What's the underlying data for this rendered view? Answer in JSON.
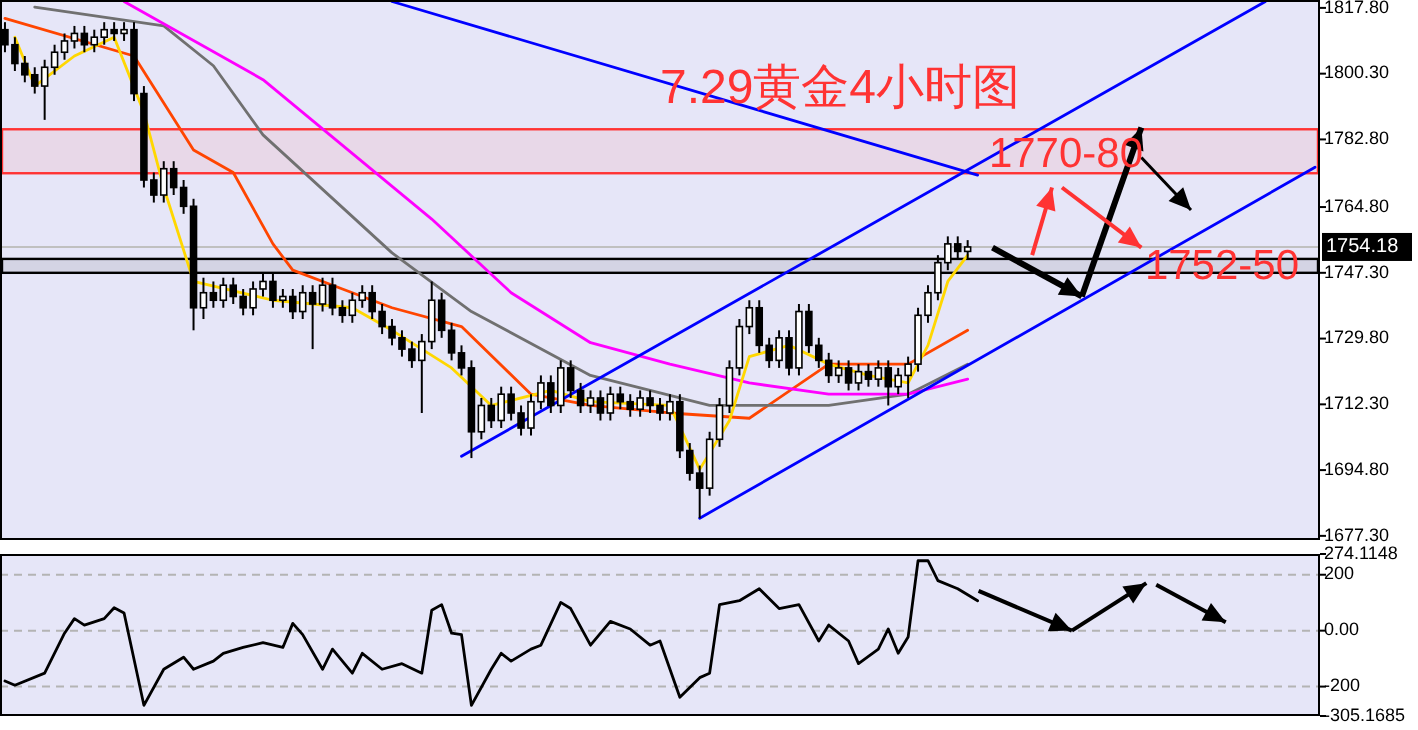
{
  "chart_data": [
    {
      "type": "candlestick",
      "title": "7.29黄金4小时图",
      "categories": [
        null,
        null,
        null,
        null,
        null,
        null,
        null,
        null,
        null,
        null,
        null,
        null,
        null,
        null,
        null,
        null,
        null,
        null,
        null,
        null,
        null,
        null,
        null,
        null,
        null,
        null,
        null,
        null,
        null,
        null,
        null,
        null,
        null,
        null,
        null,
        null,
        null,
        null,
        null,
        null,
        null,
        null,
        null,
        null,
        null,
        null,
        null,
        null,
        null,
        null,
        null,
        null,
        null,
        null,
        null,
        null,
        null,
        null,
        null,
        null,
        null,
        null,
        null,
        null,
        null,
        null,
        null,
        null,
        null,
        null,
        null,
        null,
        null,
        null,
        null,
        null,
        null,
        null,
        null,
        null,
        null,
        null,
        null,
        null,
        null,
        null,
        null,
        null,
        null,
        null,
        null,
        null,
        null,
        null,
        null,
        null,
        null,
        null,
        null,
        null,
        null,
        null,
        null,
        null,
        null,
        null,
        null,
        null,
        null,
        null,
        null,
        null,
        null,
        null,
        null,
        null,
        null,
        null,
        null,
        null,
        null,
        null,
        null,
        null,
        null,
        null,
        null,
        null,
        null,
        null,
        null,
        null,
        null
      ],
      "ohlc": [
        [
          1812,
          1814,
          1806,
          1808
        ],
        [
          1808,
          1810,
          1801,
          1803
        ],
        [
          1803,
          1805,
          1798,
          1800
        ],
        [
          1800,
          1802,
          1795,
          1797
        ],
        [
          1797,
          1804,
          1788,
          1802
        ],
        [
          1802,
          1808,
          1800,
          1806
        ],
        [
          1806,
          1811,
          1804,
          1809
        ],
        [
          1809,
          1813,
          1807,
          1811
        ],
        [
          1811,
          1813,
          1806,
          1808
        ],
        [
          1808,
          1812,
          1806,
          1810
        ],
        [
          1810,
          1814,
          1808,
          1812
        ],
        [
          1812,
          1814,
          1809,
          1811
        ],
        [
          1811,
          1814,
          1809,
          1812
        ],
        [
          1812,
          1814,
          1793,
          1795
        ],
        [
          1795,
          1797,
          1770,
          1772
        ],
        [
          1772,
          1774,
          1766,
          1768
        ],
        [
          1768,
          1777,
          1766,
          1775
        ],
        [
          1775,
          1777,
          1768,
          1770
        ],
        [
          1770,
          1772,
          1763,
          1765
        ],
        [
          1765,
          1767,
          1732,
          1738
        ],
        [
          1738,
          1746,
          1735,
          1742
        ],
        [
          1742,
          1745,
          1738,
          1740
        ],
        [
          1740,
          1746,
          1738,
          1744
        ],
        [
          1744,
          1746,
          1739,
          1741
        ],
        [
          1741,
          1743,
          1736,
          1738
        ],
        [
          1738,
          1745,
          1736,
          1743
        ],
        [
          1743,
          1747,
          1741,
          1745
        ],
        [
          1745,
          1747,
          1738,
          1740
        ],
        [
          1740,
          1743,
          1738,
          1741
        ],
        [
          1741,
          1743,
          1735,
          1737
        ],
        [
          1737,
          1744,
          1735,
          1742
        ],
        [
          1742,
          1744,
          1727,
          1739
        ],
        [
          1739,
          1746,
          1737,
          1744
        ],
        [
          1744,
          1746,
          1736,
          1738
        ],
        [
          1738,
          1740,
          1734,
          1736
        ],
        [
          1736,
          1742,
          1734,
          1740
        ],
        [
          1740,
          1744,
          1738,
          1742
        ],
        [
          1742,
          1744,
          1735,
          1737
        ],
        [
          1737,
          1739,
          1731,
          1733
        ],
        [
          1733,
          1735,
          1728,
          1730
        ],
        [
          1730,
          1732,
          1725,
          1727
        ],
        [
          1727,
          1729,
          1722,
          1724
        ],
        [
          1724,
          1731,
          1710,
          1729
        ],
        [
          1729,
          1745,
          1727,
          1740
        ],
        [
          1740,
          1742,
          1730,
          1732
        ],
        [
          1732,
          1734,
          1724,
          1726
        ],
        [
          1726,
          1728,
          1720,
          1722
        ],
        [
          1722,
          1724,
          1698,
          1705
        ],
        [
          1705,
          1714,
          1703,
          1712
        ],
        [
          1712,
          1714,
          1706,
          1708
        ],
        [
          1708,
          1717,
          1706,
          1715
        ],
        [
          1715,
          1717,
          1708,
          1710
        ],
        [
          1710,
          1712,
          1704,
          1706
        ],
        [
          1706,
          1715,
          1704,
          1713
        ],
        [
          1713,
          1720,
          1711,
          1718
        ],
        [
          1718,
          1720,
          1710,
          1712
        ],
        [
          1712,
          1724,
          1710,
          1722
        ],
        [
          1722,
          1724,
          1714,
          1716
        ],
        [
          1716,
          1718,
          1710,
          1712
        ],
        [
          1712,
          1716,
          1710,
          1714
        ],
        [
          1714,
          1716,
          1708,
          1710
        ],
        [
          1710,
          1717,
          1708,
          1715
        ],
        [
          1715,
          1717,
          1711,
          1713
        ],
        [
          1713,
          1715,
          1709,
          1711
        ],
        [
          1711,
          1716,
          1709,
          1714
        ],
        [
          1714,
          1716,
          1710,
          1712
        ],
        [
          1712,
          1714,
          1708,
          1710
        ],
        [
          1710,
          1715,
          1708,
          1713
        ],
        [
          1713,
          1715,
          1698,
          1700
        ],
        [
          1700,
          1702,
          1692,
          1694
        ],
        [
          1694,
          1696,
          1682,
          1690
        ],
        [
          1690,
          1705,
          1688,
          1703
        ],
        [
          1703,
          1714,
          1701,
          1712
        ],
        [
          1712,
          1724,
          1710,
          1722
        ],
        [
          1722,
          1735,
          1720,
          1733
        ],
        [
          1733,
          1740,
          1731,
          1738
        ],
        [
          1738,
          1740,
          1726,
          1728
        ],
        [
          1728,
          1730,
          1722,
          1724
        ],
        [
          1724,
          1732,
          1722,
          1730
        ],
        [
          1730,
          1732,
          1720,
          1722
        ],
        [
          1722,
          1739,
          1720,
          1737
        ],
        [
          1737,
          1739,
          1726,
          1728
        ],
        [
          1728,
          1730,
          1722,
          1724
        ],
        [
          1724,
          1726,
          1718,
          1720
        ],
        [
          1720,
          1724,
          1718,
          1722
        ],
        [
          1722,
          1724,
          1716,
          1718
        ],
        [
          1718,
          1723,
          1716,
          1721
        ],
        [
          1721,
          1723,
          1717,
          1719
        ],
        [
          1719,
          1724,
          1717,
          1722
        ],
        [
          1722,
          1724,
          1712,
          1717
        ],
        [
          1717,
          1722,
          1715,
          1720
        ],
        [
          1720,
          1725,
          1714,
          1723
        ],
        [
          1723,
          1738,
          1721,
          1736
        ],
        [
          1736,
          1744,
          1734,
          1742
        ],
        [
          1742,
          1752,
          1740,
          1750
        ],
        [
          1750,
          1757,
          1748,
          1755
        ],
        [
          1755,
          1757,
          1751,
          1753
        ],
        [
          1753,
          1756,
          1751,
          1754.18
        ],
        null,
        null,
        null,
        null,
        null,
        null,
        null,
        null,
        null,
        null,
        null,
        null,
        null,
        null,
        null,
        null,
        null,
        null,
        null,
        null,
        null,
        null,
        null,
        null,
        null,
        null,
        null,
        null,
        null,
        null,
        null,
        null,
        null,
        null,
        null
      ],
      "series": [
        {
          "type": "line",
          "color": "#ff4500",
          "values": [
            1815,
            null,
            null,
            null,
            null,
            null,
            null,
            null,
            null,
            null,
            null,
            null,
            null,
            1805,
            null,
            null,
            null,
            null,
            null,
            1780,
            null,
            null,
            null,
            1774,
            null,
            null,
            null,
            1755,
            null,
            1748,
            null,
            null,
            null,
            null,
            1743,
            null,
            null,
            null,
            null,
            1738,
            null,
            null,
            null,
            null,
            null,
            null,
            1733,
            null,
            null,
            null,
            null,
            null,
            null,
            1715,
            null,
            null,
            null,
            null,
            null,
            1712,
            null,
            null,
            null,
            null,
            null,
            null,
            null,
            1710,
            null,
            null,
            null,
            null,
            null,
            null,
            null,
            1708.6,
            null,
            null,
            null,
            null,
            null,
            null,
            null,
            1723,
            null,
            null,
            null,
            null,
            null,
            null,
            null,
            1723,
            null,
            null,
            null,
            null,
            null,
            1732,
            null,
            null,
            null,
            null,
            null,
            null,
            null,
            null,
            null,
            null,
            null,
            null,
            null,
            null,
            null,
            null,
            null,
            null,
            null,
            null,
            null,
            null,
            null,
            null,
            null,
            null,
            null,
            null,
            null,
            null,
            null,
            null,
            null,
            null,
            null
          ]
        },
        {
          "type": "line",
          "color": "#707070",
          "values": [
            null,
            null,
            null,
            1818,
            null,
            null,
            null,
            null,
            null,
            null,
            null,
            null,
            null,
            null,
            null,
            null,
            1813,
            null,
            null,
            null,
            null,
            1802.4,
            null,
            null,
            null,
            null,
            1784,
            null,
            null,
            null,
            null,
            null,
            null,
            null,
            null,
            null,
            null,
            null,
            null,
            1752.6,
            null,
            null,
            null,
            null,
            null,
            null,
            null,
            1737,
            null,
            null,
            null,
            null,
            null,
            null,
            null,
            null,
            null,
            null,
            null,
            1720,
            null,
            null,
            null,
            null,
            null,
            null,
            null,
            null,
            null,
            null,
            null,
            1712,
            null,
            null,
            null,
            null,
            null,
            null,
            null,
            null,
            null,
            null,
            null,
            1712,
            null,
            null,
            null,
            null,
            null,
            null,
            null,
            1715,
            null,
            null,
            null,
            null,
            null,
            1723,
            null,
            null,
            null,
            null,
            null,
            null,
            null,
            null,
            null,
            null,
            null,
            null,
            null,
            null,
            null,
            null,
            null,
            null,
            null,
            null,
            null,
            null,
            null,
            null,
            null,
            null,
            null,
            null,
            null,
            null,
            null,
            null,
            null,
            null,
            null
          ]
        },
        {
          "type": "line",
          "color": "#ff00ff",
          "values": [
            null,
            null,
            null,
            null,
            null,
            null,
            null,
            null,
            null,
            null,
            null,
            null,
            1819.5,
            null,
            null,
            null,
            null,
            null,
            null,
            null,
            null,
            null,
            null,
            null,
            null,
            null,
            1798.7,
            null,
            null,
            null,
            null,
            null,
            null,
            null,
            null,
            null,
            null,
            null,
            null,
            null,
            null,
            null,
            null,
            1761.6,
            null,
            null,
            null,
            null,
            null,
            null,
            null,
            1742,
            null,
            null,
            null,
            null,
            null,
            null,
            null,
            1728.7,
            null,
            null,
            null,
            null,
            null,
            null,
            null,
            1723,
            null,
            null,
            null,
            null,
            null,
            null,
            null,
            1718,
            null,
            null,
            null,
            null,
            null,
            null,
            null,
            1715,
            null,
            null,
            null,
            null,
            null,
            null,
            null,
            1715,
            null,
            null,
            null,
            null,
            null,
            1719,
            null,
            null,
            null,
            null,
            null,
            null,
            null,
            null,
            null,
            null,
            null,
            null,
            null,
            null,
            null,
            null,
            null,
            null,
            null,
            null,
            null,
            null,
            null,
            null,
            null,
            null,
            null,
            null,
            null,
            null,
            null,
            null,
            null,
            null,
            null
          ]
        },
        {
          "type": "line",
          "color": "#ffd700",
          "values": [
            null,
            1810,
            null,
            1797,
            null,
            null,
            null,
            1805,
            null,
            null,
            null,
            1810,
            null,
            null,
            1790,
            null,
            1770,
            null,
            null,
            1745,
            null,
            null,
            null,
            null,
            null,
            null,
            null,
            1740,
            null,
            null,
            null,
            null,
            null,
            null,
            null,
            1738,
            null,
            null,
            null,
            1732,
            null,
            null,
            null,
            null,
            null,
            1722,
            null,
            null,
            null,
            1712,
            null,
            null,
            null,
            null,
            null,
            1716,
            null,
            null,
            null,
            1713,
            null,
            null,
            null,
            null,
            null,
            null,
            null,
            1712,
            null,
            null,
            1695,
            null,
            null,
            1708,
            null,
            1725,
            null,
            null,
            null,
            1728,
            null,
            null,
            null,
            1723,
            null,
            null,
            null,
            1720,
            null,
            null,
            null,
            1718,
            null,
            1728,
            null,
            1745,
            null,
            1752,
            null,
            null,
            null,
            null,
            null,
            null,
            null,
            null,
            null,
            null,
            null,
            null,
            null,
            null,
            null,
            null,
            null,
            null,
            null,
            null,
            null,
            null,
            null,
            null,
            null,
            null,
            null,
            null,
            null,
            null,
            null,
            null,
            null,
            null,
            null
          ]
        },
        {
          "type": "line",
          "color": "#0000ff",
          "values": [
            null,
            null,
            null,
            null,
            null,
            null,
            null,
            null,
            null,
            null,
            null,
            null,
            null,
            null,
            null,
            null,
            null,
            null,
            null,
            null,
            null,
            null,
            null,
            null,
            null,
            null,
            null,
            null,
            null,
            null,
            null,
            null,
            null,
            null,
            null,
            null,
            null,
            null,
            null,
            null,
            null,
            null,
            null,
            null,
            null,
            null,
            1698.5,
            null,
            null,
            null,
            null,
            null,
            null,
            null,
            null,
            null,
            null,
            null,
            null,
            null,
            null,
            null,
            null,
            null,
            null,
            null,
            null,
            null,
            null,
            null,
            null,
            null,
            null,
            null,
            null,
            null,
            null,
            null,
            null,
            null,
            null,
            null,
            null,
            null,
            null,
            null,
            null,
            null,
            null,
            null,
            null,
            null,
            null,
            null,
            null,
            null,
            null,
            null,
            null,
            null,
            null,
            null,
            null,
            null,
            null,
            null,
            null,
            null,
            null,
            null,
            null,
            null,
            null,
            null,
            null,
            null,
            null,
            null,
            null,
            null,
            null,
            null,
            null,
            null,
            null,
            null,
            null,
            1819.5,
            null,
            null,
            null,
            null,
            null
          ]
        },
        {
          "type": "line",
          "color": "#0000ff",
          "values": [
            null,
            null,
            null,
            null,
            null,
            null,
            null,
            null,
            null,
            null,
            null,
            null,
            null,
            null,
            null,
            null,
            null,
            null,
            null,
            null,
            null,
            null,
            null,
            null,
            null,
            null,
            null,
            null,
            null,
            null,
            null,
            null,
            null,
            null,
            null,
            null,
            null,
            null,
            null,
            null,
            null,
            null,
            null,
            null,
            null,
            null,
            null,
            null,
            null,
            null,
            null,
            null,
            null,
            null,
            null,
            null,
            null,
            null,
            null,
            null,
            null,
            null,
            null,
            null,
            null,
            null,
            null,
            null,
            null,
            null,
            1682,
            null,
            null,
            null,
            null,
            null,
            null,
            null,
            null,
            null,
            null,
            null,
            null,
            null,
            null,
            null,
            null,
            null,
            null,
            null,
            null,
            null,
            null,
            null,
            null,
            null,
            null,
            null,
            null,
            null,
            null,
            null,
            null,
            null,
            null,
            null,
            null,
            null,
            null,
            null,
            null,
            null,
            null,
            null,
            null,
            null,
            null,
            null,
            null,
            null,
            null,
            null,
            null,
            null,
            null,
            null,
            null,
            null,
            null,
            null,
            null,
            null,
            1775.4
          ]
        },
        {
          "type": "line",
          "color": "#0000ff",
          "values": [
            null,
            null,
            null,
            null,
            null,
            null,
            null,
            null,
            null,
            null,
            null,
            null,
            null,
            null,
            null,
            null,
            null,
            null,
            null,
            null,
            null,
            null,
            null,
            null,
            null,
            null,
            null,
            null,
            null,
            null,
            null,
            null,
            null,
            null,
            null,
            null,
            null,
            null,
            null,
            1819.5,
            null,
            null,
            null,
            null,
            null,
            null,
            null,
            null,
            null,
            null,
            null,
            null,
            null,
            null,
            null,
            null,
            null,
            null,
            null,
            null,
            null,
            null,
            null,
            null,
            null,
            null,
            null,
            null,
            null,
            null,
            null,
            null,
            null,
            null,
            null,
            null,
            null,
            null,
            null,
            null,
            null,
            null,
            null,
            null,
            null,
            null,
            null,
            null,
            null,
            null,
            null,
            null,
            null,
            null,
            null,
            null,
            null,
            null,
            1773.3,
            null,
            null,
            null,
            null,
            null,
            null,
            null,
            null,
            null,
            null,
            null,
            null,
            null,
            null,
            null,
            null,
            null,
            null,
            null,
            null,
            null,
            null,
            null,
            null,
            null,
            null,
            null,
            null,
            null,
            null,
            null,
            null,
            null,
            null
          ]
        }
      ],
      "bands": [
        {
          "axis": "y",
          "from": 1773.8,
          "to": 1785.5,
          "color": "#ff3333"
        },
        {
          "axis": "y",
          "from": 1747.3,
          "to": 1751,
          "color": "#000000"
        }
      ],
      "ref_lines": [
        {
          "axis": "y",
          "value": 1754.18,
          "label": "1754.18",
          "color": "#c0c0c0"
        }
      ],
      "annotations": [
        "1770-80",
        "1752-50"
      ],
      "ylim": [
        1676.2,
        1819.9
      ],
      "yticks": [
        {
          "value": 1677.3,
          "label": "1677.30"
        },
        {
          "value": 1694.8,
          "label": "1694.80"
        },
        {
          "value": 1712.3,
          "label": "1712.30"
        },
        {
          "value": 1729.8,
          "label": "1729.80"
        },
        {
          "value": 1747.3,
          "label": "1747.30"
        },
        {
          "value": 1764.8,
          "label": "1764.80"
        },
        {
          "value": 1782.8,
          "label": "1782.80"
        },
        {
          "value": 1800.3,
          "label": "1800.30"
        },
        {
          "value": 1817.8,
          "label": "1817.80"
        }
      ],
      "tick_labels": "y"
    },
    {
      "type": "line",
      "categories": [
        null,
        null,
        null,
        null,
        null,
        null,
        null,
        null,
        null,
        null,
        null,
        null,
        null,
        null,
        null,
        null,
        null,
        null,
        null,
        null,
        null,
        null,
        null,
        null,
        null,
        null,
        null,
        null,
        null,
        null,
        null,
        null,
        null,
        null,
        null,
        null,
        null,
        null,
        null,
        null,
        null,
        null,
        null,
        null,
        null,
        null,
        null,
        null,
        null,
        null,
        null,
        null,
        null,
        null,
        null,
        null,
        null,
        null,
        null,
        null,
        null,
        null,
        null,
        null,
        null,
        null,
        null,
        null,
        null,
        null,
        null,
        null,
        null,
        null,
        null,
        null,
        null,
        null,
        null,
        null,
        null,
        null,
        null,
        null,
        null,
        null,
        null,
        null,
        null,
        null,
        null,
        null,
        null,
        null,
        null,
        null,
        null,
        null,
        null,
        null,
        null,
        null,
        null,
        null,
        null,
        null,
        null,
        null,
        null,
        null,
        null,
        null,
        null,
        null,
        null,
        null,
        null,
        null,
        null,
        null,
        null,
        null,
        null,
        null,
        null,
        null,
        null,
        null,
        null,
        null,
        null,
        null,
        null
      ],
      "series": [
        {
          "color": "#000000",
          "values": [
            -180,
            -195,
            null,
            null,
            -152,
            null,
            -9,
            43,
            20,
            null,
            43,
            82,
            63,
            null,
            -267,
            null,
            -138,
            null,
            -95,
            -138,
            null,
            -109,
            -81,
            null,
            -60,
            null,
            -43,
            null,
            -60,
            26,
            -14,
            null,
            -138,
            -66,
            null,
            -152,
            -81,
            null,
            -138,
            null,
            -118,
            null,
            -152,
            73,
            93,
            -9,
            -14,
            -267,
            null,
            -138,
            -81,
            -109,
            null,
            -66,
            -52,
            null,
            101,
            79,
            null,
            -52,
            null,
            33,
            null,
            6,
            null,
            -52,
            -37,
            null,
            -238,
            null,
            -168,
            -152,
            93,
            null,
            107,
            null,
            150,
            null,
            79,
            null,
            93,
            null,
            -37,
            20,
            null,
            -37,
            -118,
            null,
            -66,
            6,
            -81,
            -23,
            250,
            250,
            179,
            null,
            150,
            null,
            107,
            null,
            null,
            null,
            null,
            null,
            null,
            null,
            null,
            null,
            null,
            null,
            null,
            null,
            null,
            null,
            null,
            null,
            null,
            null,
            null,
            null,
            null,
            null,
            null,
            null,
            null,
            null,
            null,
            null,
            null,
            null,
            null,
            null,
            null
          ]
        }
      ],
      "ylim": [
        -305.1685,
        274.1148
      ],
      "yticks": [
        {
          "value": -305.1685,
          "label": "-305.1685"
        },
        -200,
        {
          "value": 0,
          "label": "0.00"
        },
        200,
        {
          "value": 274.1148,
          "label": "274.1148"
        }
      ],
      "grid": "y",
      "tick_labels": "y"
    }
  ]
}
